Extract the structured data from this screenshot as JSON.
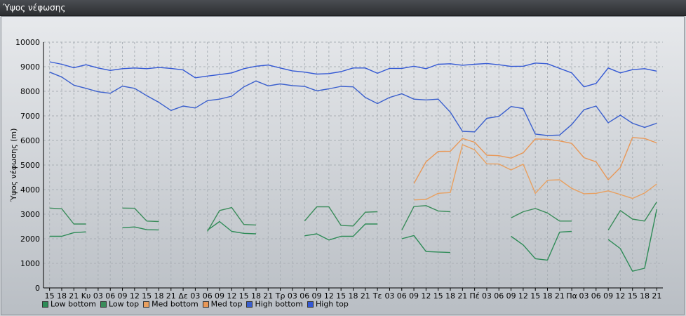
{
  "window": {
    "title": "Ύψος νέφωσης"
  },
  "chart_data": {
    "type": "line",
    "title": "",
    "ylabel": "Ύψος νέφωσης (m)",
    "xlabel": "",
    "ylim": [
      0,
      10000
    ],
    "yticks": [
      0,
      1000,
      2000,
      3000,
      4000,
      5000,
      6000,
      7000,
      8000,
      9000,
      10000
    ],
    "grid": true,
    "legend_position": "bottom-left",
    "categories": [
      "15",
      "18",
      "21",
      "Κυ",
      "03",
      "06",
      "09",
      "12",
      "15",
      "18",
      "21",
      "Δε",
      "03",
      "06",
      "09",
      "12",
      "15",
      "18",
      "21",
      "Τρ",
      "03",
      "06",
      "09",
      "12",
      "15",
      "18",
      "21",
      "Τε",
      "03",
      "06",
      "09",
      "12",
      "15",
      "18",
      "21",
      "Πέ",
      "03",
      "06",
      "09",
      "12",
      "15",
      "18",
      "21",
      "Πα",
      "03",
      "06",
      "09",
      "12",
      "15",
      "18",
      "21"
    ],
    "series": [
      {
        "name": "Low bottom",
        "color": "#2e8b57",
        "values": [
          2100,
          2100,
          2250,
          2280,
          null,
          null,
          2450,
          2480,
          2370,
          2360,
          null,
          null,
          null,
          2350,
          2700,
          2300,
          2220,
          2200,
          null,
          null,
          null,
          2120,
          2200,
          1950,
          2100,
          2100,
          2600,
          2600,
          null,
          2000,
          2130,
          1480,
          1460,
          1440,
          null,
          null,
          null,
          null,
          2100,
          1750,
          1190,
          1130,
          2270,
          2300,
          null,
          null,
          1970,
          1600,
          680,
          800,
          3200
        ]
      },
      {
        "name": "Low top",
        "color": "#3a8c5a",
        "values": [
          3250,
          3220,
          2600,
          2600,
          null,
          null,
          3250,
          3240,
          2720,
          2700,
          null,
          null,
          null,
          2300,
          3150,
          3270,
          2580,
          2560,
          null,
          null,
          null,
          2720,
          3300,
          3300,
          2540,
          2520,
          3080,
          3100,
          null,
          2350,
          3310,
          3350,
          3130,
          3100,
          null,
          null,
          null,
          null,
          2850,
          3100,
          3230,
          3050,
          2720,
          2720,
          null,
          null,
          2350,
          3150,
          2800,
          2720,
          3500
        ]
      },
      {
        "name": "Med bottom",
        "color": "#e8a060",
        "values": [
          null,
          null,
          null,
          null,
          null,
          null,
          null,
          null,
          null,
          null,
          null,
          null,
          null,
          null,
          null,
          null,
          null,
          null,
          null,
          null,
          null,
          null,
          null,
          null,
          null,
          null,
          null,
          null,
          null,
          null,
          3580,
          3600,
          3850,
          3880,
          5830,
          5620,
          5050,
          5040,
          4800,
          5030,
          3850,
          4380,
          4400,
          4050,
          3830,
          3850,
          3950,
          3800,
          3640,
          3860,
          4230
        ]
      },
      {
        "name": "Med top",
        "color": "#e89858",
        "values": [
          null,
          null,
          null,
          null,
          null,
          null,
          null,
          null,
          null,
          null,
          null,
          null,
          null,
          null,
          null,
          null,
          null,
          null,
          null,
          null,
          null,
          null,
          null,
          null,
          null,
          null,
          null,
          null,
          null,
          null,
          4250,
          5130,
          5550,
          5560,
          6080,
          5930,
          5400,
          5380,
          5280,
          5500,
          6060,
          6050,
          5980,
          5880,
          5300,
          5130,
          4400,
          4900,
          6120,
          6080,
          5900
        ]
      },
      {
        "name": "High bottom",
        "color": "#3a5fcd",
        "values": [
          8780,
          8580,
          8250,
          8120,
          7980,
          7920,
          8210,
          8120,
          7820,
          7550,
          7220,
          7400,
          7320,
          7620,
          7680,
          7800,
          8180,
          8420,
          8220,
          8300,
          8230,
          8200,
          8020,
          8100,
          8200,
          8180,
          7750,
          7500,
          7750,
          7900,
          7680,
          7650,
          7680,
          7150,
          6370,
          6350,
          6900,
          6980,
          7380,
          7300,
          6260,
          6200,
          6220,
          6650,
          7250,
          7400,
          6720,
          7030,
          6700,
          6530,
          6700
        ]
      },
      {
        "name": "High top",
        "color": "#3358d4",
        "values": [
          9200,
          9100,
          8960,
          9080,
          8950,
          8850,
          8920,
          8950,
          8920,
          8970,
          8930,
          8870,
          8550,
          8620,
          8680,
          8750,
          8920,
          9020,
          9070,
          8950,
          8830,
          8780,
          8700,
          8720,
          8800,
          8950,
          8950,
          8730,
          8930,
          8930,
          9020,
          8920,
          9100,
          9120,
          9060,
          9100,
          9130,
          9080,
          9010,
          9020,
          9150,
          9120,
          8930,
          8750,
          8180,
          8320,
          8950,
          8750,
          8880,
          8920,
          8820
        ]
      }
    ]
  }
}
